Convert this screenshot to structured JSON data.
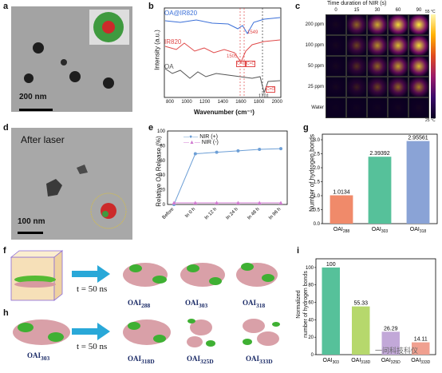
{
  "panels": {
    "a": {
      "letter": "a",
      "scale_bar": "200 nm"
    },
    "b": {
      "letter": "b",
      "ylabel": "Intensity (a.u.)",
      "xlabel": "Wavenumber (cm⁻¹)",
      "traces": [
        "OA@IR820",
        "IR820",
        "OA"
      ],
      "peak_labels": [
        "1549",
        "1505",
        "1701"
      ],
      "bond_labels": [
        "C=C",
        "C=C",
        "C=O"
      ],
      "xticks": [
        "800",
        "1000",
        "1200",
        "1400",
        "1600",
        "1800",
        "2000"
      ]
    },
    "c": {
      "letter": "c",
      "title": "Time duration of NIR (s)",
      "cols": [
        "0",
        "15",
        "30",
        "60",
        "90"
      ],
      "rows": [
        "200 ppm",
        "100 ppm",
        "50 ppm",
        "25 ppm",
        "Water"
      ],
      "scale_top": "55 °C",
      "scale_bottom": "25 °C"
    },
    "d": {
      "letter": "d",
      "caption": "After laser",
      "scale_bar": "100 nm"
    },
    "e": {
      "letter": "e",
      "ylabel": "Relative OA Release (%)",
      "legend": [
        "NIR (+)",
        "NIR (-)"
      ],
      "categories": [
        "Before",
        "In 0 h",
        "In 12 h",
        "In 24 h",
        "In 48 h",
        "In 96 h"
      ],
      "yticks": [
        "0",
        "20",
        "40",
        "60",
        "80",
        "100"
      ]
    },
    "g": {
      "letter": "g",
      "ylabel": "Number of hydrogen bonds",
      "values_text": [
        "1.0134",
        "2.39392",
        "2.95561"
      ],
      "cat_main": [
        "OAI",
        "OAI",
        "OAI"
      ],
      "cat_sub": [
        "288",
        "303",
        "318"
      ],
      "yticks": [
        "0.0",
        "0.5",
        "1.0",
        "1.5",
        "2.0",
        "2.5",
        "3.0"
      ]
    },
    "f": {
      "letter": "f",
      "time": "t = 50 ns",
      "labels_main": [
        "OAI",
        "OAI",
        "OAI"
      ],
      "labels_sub": [
        "288",
        "303",
        "318"
      ]
    },
    "h": {
      "letter": "h",
      "time": "t = 50 ns",
      "start_main": "OAI",
      "start_sub": "303",
      "labels_main": [
        "OAI",
        "OAI",
        "OAI"
      ],
      "labels_sub": [
        "318D",
        "325D",
        "333D"
      ]
    },
    "i": {
      "letter": "i",
      "ylabel_1": "Normalized",
      "ylabel_2": "number of hydrogen bonds",
      "values_text": [
        "100",
        "55.33",
        "26.29",
        "14.11"
      ],
      "cat_main": [
        "OAI",
        "OAI",
        "OAI",
        "OAI"
      ],
      "cat_sub": [
        "303",
        "318D",
        "325D",
        "333D"
      ],
      "yticks": [
        "0",
        "20",
        "40",
        "60",
        "80",
        "100"
      ]
    }
  },
  "watermark": "一问科技科仪",
  "chart_data": [
    {
      "type": "line",
      "panel": "b",
      "xlabel": "Wavenumber (cm⁻¹)",
      "ylabel": "Intensity (a.u.)",
      "xlim": [
        600,
        2000
      ],
      "series": [
        {
          "name": "OA@IR820",
          "color": "#3a6fd8"
        },
        {
          "name": "IR820",
          "color": "#e04a4a"
        },
        {
          "name": "OA",
          "color": "#555555"
        }
      ]
    },
    {
      "type": "line",
      "panel": "e",
      "ylabel": "Relative OA Release (%)",
      "ylim": [
        0,
        100
      ],
      "categories": [
        "Before",
        "In 0 h",
        "In 12 h",
        "In 24 h",
        "In 48 h",
        "In 96 h"
      ],
      "series": [
        {
          "name": "NIR (+)",
          "color": "#6d9fd6",
          "values": [
            0,
            69,
            71,
            73,
            75,
            76
          ]
        },
        {
          "name": "NIR (-)",
          "color": "#d07ad0",
          "values": [
            0,
            0,
            0,
            0,
            0,
            0
          ]
        }
      ]
    },
    {
      "type": "bar",
      "panel": "g",
      "ylabel": "Number of hydrogen bonds",
      "ylim": [
        0,
        3.2
      ],
      "categories": [
        "OAI288",
        "OAI303",
        "OAI318"
      ],
      "values": [
        1.0134,
        2.39392,
        2.95561
      ],
      "colors": [
        "#f08a6a",
        "#56c19a",
        "#8aa3d6"
      ]
    },
    {
      "type": "bar",
      "panel": "i",
      "ylabel": "Normalized number of hydrogen bonds",
      "ylim": [
        0,
        110
      ],
      "categories": [
        "OAI303",
        "OAI318D",
        "OAI325D",
        "OAI333D"
      ],
      "values": [
        100,
        55.33,
        26.29,
        14.11
      ],
      "colors": [
        "#56c19a",
        "#b6d86c",
        "#c2a8d8",
        "#f0a090"
      ]
    }
  ]
}
